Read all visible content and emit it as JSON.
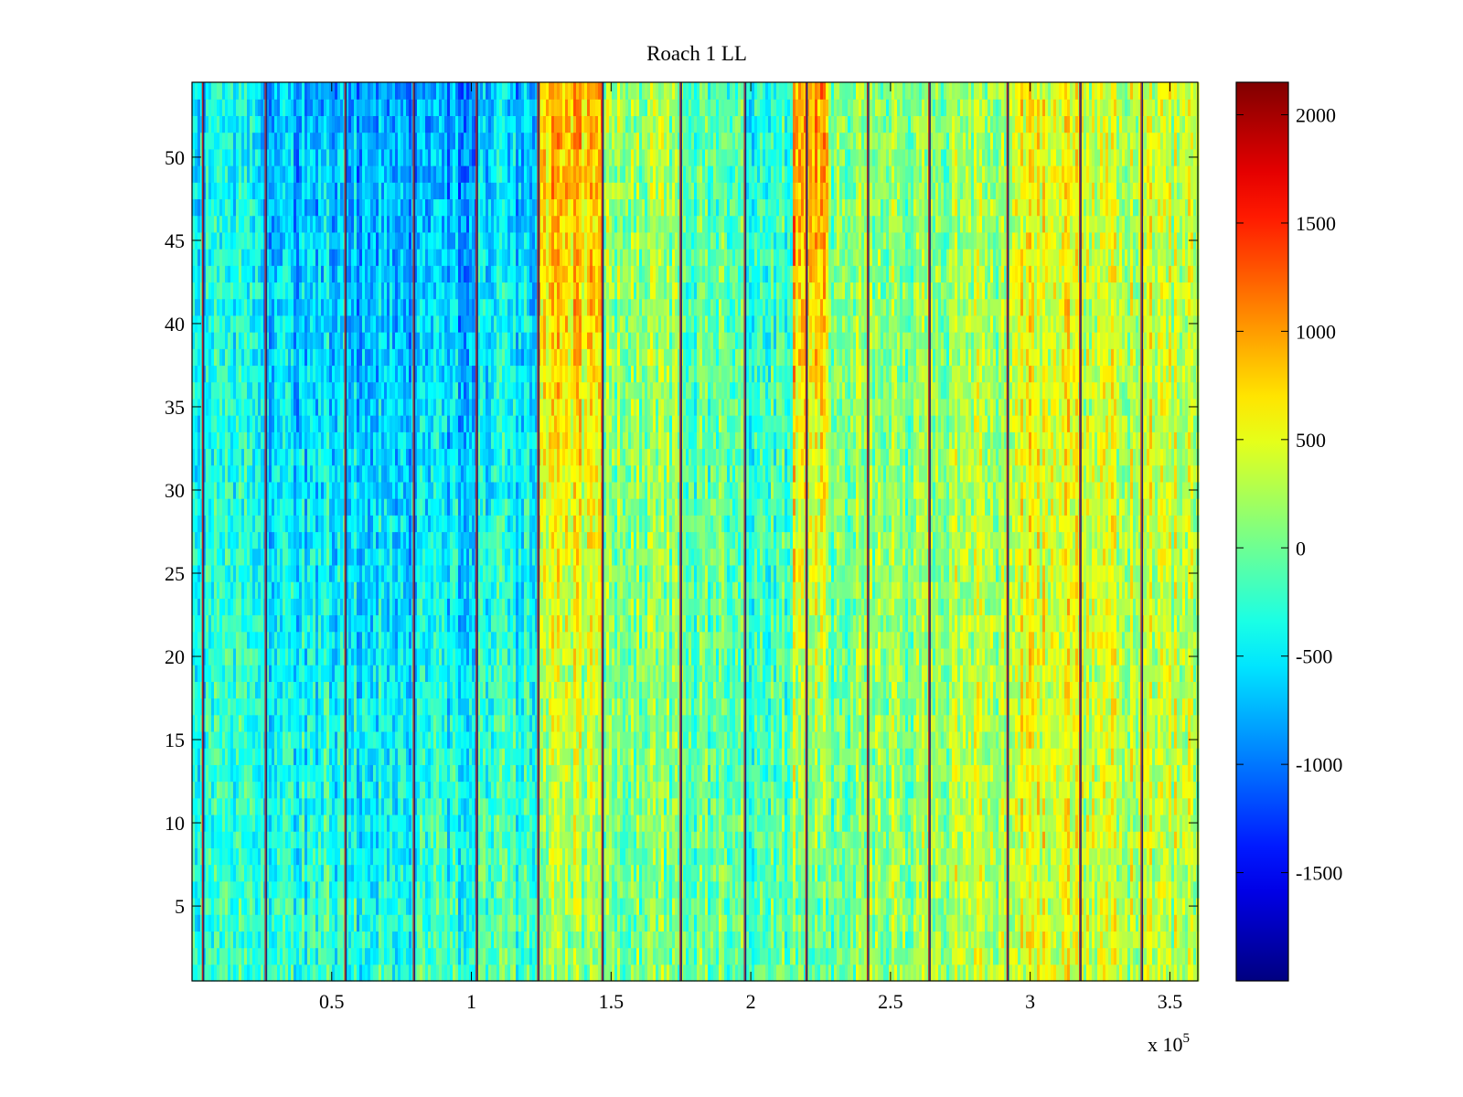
{
  "chart_data": {
    "type": "heatmap",
    "title": "Roach 1 LL",
    "xlabel": "",
    "ylabel": "",
    "x_range": [
      0,
      360000
    ],
    "y_range": [
      0.5,
      54.5
    ],
    "x_ticks": [
      50000,
      100000,
      150000,
      200000,
      250000,
      300000,
      350000
    ],
    "x_tick_labels": [
      "0.5",
      "1",
      "1.5",
      "2",
      "2.5",
      "3",
      "3.5"
    ],
    "x_exponent_label": "x 10",
    "x_exponent_power": "5",
    "y_ticks": [
      5,
      10,
      15,
      20,
      25,
      30,
      35,
      40,
      45,
      50
    ],
    "y_tick_labels": [
      "5",
      "10",
      "15",
      "20",
      "25",
      "30",
      "35",
      "40",
      "45",
      "50"
    ],
    "rows": 54,
    "colormap": "jet",
    "color_range": [
      -2000,
      2150
    ],
    "colorbar_ticks": [
      2000,
      1500,
      1000,
      500,
      0,
      -500,
      -1000,
      -1500
    ],
    "colorbar_tick_labels": [
      "2000",
      "1500",
      "1000",
      "500",
      "0",
      "-500",
      "-1000",
      "-1500"
    ],
    "column_segments": [
      {
        "x_start": 0,
        "x_end": 25000,
        "top_mean": -500,
        "bottom_mean": -300
      },
      {
        "x_start": 25000,
        "x_end": 55000,
        "top_mean": -750,
        "bottom_mean": -250
      },
      {
        "x_start": 55000,
        "x_end": 80000,
        "top_mean": -800,
        "bottom_mean": -300
      },
      {
        "x_start": 80000,
        "x_end": 102000,
        "top_mean": -900,
        "bottom_mean": -250
      },
      {
        "x_start": 102000,
        "x_end": 124000,
        "top_mean": -700,
        "bottom_mean": -150
      },
      {
        "x_start": 124000,
        "x_end": 147000,
        "top_mean": 900,
        "bottom_mean": 100
      },
      {
        "x_start": 147000,
        "x_end": 175000,
        "top_mean": 200,
        "bottom_mean": 50
      },
      {
        "x_start": 175000,
        "x_end": 198000,
        "top_mean": -100,
        "bottom_mean": 0
      },
      {
        "x_start": 198000,
        "x_end": 215000,
        "top_mean": -300,
        "bottom_mean": -50
      },
      {
        "x_start": 215000,
        "x_end": 228000,
        "top_mean": 1100,
        "bottom_mean": 0
      },
      {
        "x_start": 228000,
        "x_end": 242000,
        "top_mean": 150,
        "bottom_mean": 0
      },
      {
        "x_start": 242000,
        "x_end": 264000,
        "top_mean": 100,
        "bottom_mean": 150
      },
      {
        "x_start": 264000,
        "x_end": 292000,
        "top_mean": 150,
        "bottom_mean": 300
      },
      {
        "x_start": 292000,
        "x_end": 318000,
        "top_mean": 550,
        "bottom_mean": 450
      },
      {
        "x_start": 318000,
        "x_end": 340000,
        "top_mean": 350,
        "bottom_mean": 350
      },
      {
        "x_start": 340000,
        "x_end": 360000,
        "top_mean": 400,
        "bottom_mean": 350
      }
    ],
    "stripe_columns": [
      4000,
      26500,
      55000,
      79500,
      102000,
      124000,
      147000,
      175000,
      198000,
      220000,
      242000,
      264000,
      292000,
      318000,
      340000
    ]
  }
}
